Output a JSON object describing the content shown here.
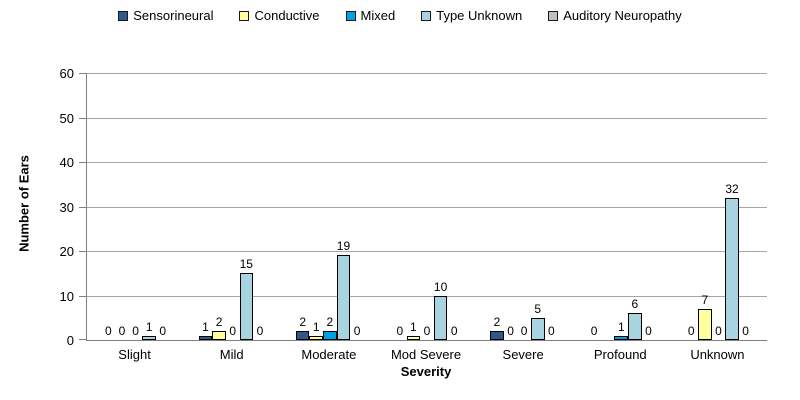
{
  "chart_data": {
    "type": "bar",
    "title": "",
    "xlabel": "Severity",
    "ylabel": "Number of Ears",
    "ylim": [
      0,
      60
    ],
    "yticks": [
      0,
      10,
      20,
      30,
      40,
      50,
      60
    ],
    "grid": true,
    "legend_position": "top",
    "categories": [
      "Slight",
      "Mild",
      "Moderate",
      "Mod Severe",
      "Severe",
      "Profound",
      "Unknown"
    ],
    "series": [
      {
        "name": "Sensorineural",
        "color": "#2E598C",
        "values": [
          0,
          1,
          2,
          0,
          2,
          0,
          0
        ],
        "labels": [
          "0",
          "1",
          "2",
          "0",
          "2",
          "0",
          "0"
        ]
      },
      {
        "name": "Conductive",
        "color": "#FFFF9E",
        "values": [
          0,
          2,
          1,
          1,
          0,
          0,
          7
        ],
        "labels": [
          "0",
          "2",
          "1",
          "1",
          "0",
          null,
          "7"
        ]
      },
      {
        "name": "Mixed",
        "color": "#00A0E4",
        "values": [
          0,
          0,
          2,
          0,
          0,
          1,
          0
        ],
        "labels": [
          "0",
          "0",
          "2",
          "0",
          "0",
          "1",
          "0"
        ]
      },
      {
        "name": "Type Unknown",
        "color": "#A8D4E2",
        "values": [
          1,
          15,
          19,
          10,
          5,
          6,
          32
        ],
        "labels": [
          "1",
          "15",
          "19",
          "10",
          "5",
          "6",
          "32"
        ]
      },
      {
        "name": "Auditory Neuropathy",
        "color": "#BFBFBF",
        "values": [
          0,
          0,
          0,
          0,
          0,
          0,
          0
        ],
        "labels": [
          "0",
          "0",
          "0",
          "0",
          "0",
          "0",
          "0"
        ]
      }
    ]
  },
  "colors": {
    "axis": "#808080",
    "gridline": "#A6A6A6",
    "background": "#FFFFFF",
    "bar_border": "#000000"
  }
}
